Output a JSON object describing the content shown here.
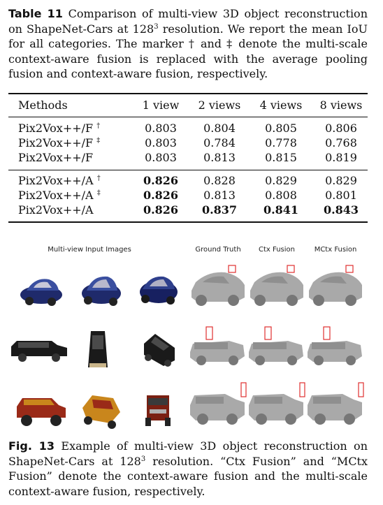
{
  "table_caption": {
    "label": "Table 11",
    "text_before_sup": " Comparison of multi-view 3D object reconstruction on ShapeNet-Cars at 128",
    "sup": "3",
    "text_after_sup": " resolution. We report the mean IoU for all categories. The marker † and ‡ denote the multi-scale context-aware fusion is replaced with the average pooling fusion and context-aware fusion, respectively."
  },
  "table": {
    "headers": [
      "Methods",
      "1 view",
      "2 views",
      "4 views",
      "8 views"
    ],
    "group1": [
      {
        "method": "Pix2Vox++/F",
        "marker": "†",
        "values": [
          "0.803",
          "0.804",
          "0.805",
          "0.806"
        ],
        "bold": [
          false,
          false,
          false,
          false
        ]
      },
      {
        "method": "Pix2Vox++/F",
        "marker": "‡",
        "values": [
          "0.803",
          "0.784",
          "0.778",
          "0.768"
        ],
        "bold": [
          false,
          false,
          false,
          false
        ]
      },
      {
        "method": "Pix2Vox++/F",
        "marker": "",
        "values": [
          "0.803",
          "0.813",
          "0.815",
          "0.819"
        ],
        "bold": [
          false,
          false,
          false,
          false
        ]
      }
    ],
    "group2": [
      {
        "method": "Pix2Vox++/A",
        "marker": "†",
        "values": [
          "0.826",
          "0.828",
          "0.829",
          "0.829"
        ],
        "bold": [
          true,
          false,
          false,
          false
        ]
      },
      {
        "method": "Pix2Vox++/A",
        "marker": "‡",
        "values": [
          "0.826",
          "0.813",
          "0.808",
          "0.801"
        ],
        "bold": [
          true,
          false,
          false,
          false
        ]
      },
      {
        "method": "Pix2Vox++/A",
        "marker": "",
        "values": [
          "0.826",
          "0.837",
          "0.841",
          "0.843"
        ],
        "bold": [
          true,
          true,
          true,
          true
        ]
      }
    ]
  },
  "figure": {
    "column_headers": {
      "inputs": "Multi-view Input Images",
      "ground_truth": "Ground Truth",
      "ctx": "Ctx Fusion",
      "mctx": "MCtx Fusion"
    },
    "rows": [
      {
        "object": "blue hatchback",
        "color": "#1f2a6b",
        "accent": "#3a4fa0"
      },
      {
        "object": "black hearse",
        "color": "#1a1a1a",
        "accent": "#4a4a4a"
      },
      {
        "object": "red and yellow off-road truck",
        "color": "#9a2a18",
        "accent": "#c9861c"
      }
    ],
    "recon_color": "#a9a9a9",
    "highlight_color": "#e03030"
  },
  "figure_caption": {
    "label": "Fig. 13",
    "text_before_sup": " Example of multi-view 3D object reconstruction on ShapeNet-Cars at 128",
    "sup": "3",
    "text_after_sup": " resolution. “Ctx Fusion” and “MCtx Fusion” denote the context-aware fusion and the multi-scale context-aware fusion, respectively."
  }
}
